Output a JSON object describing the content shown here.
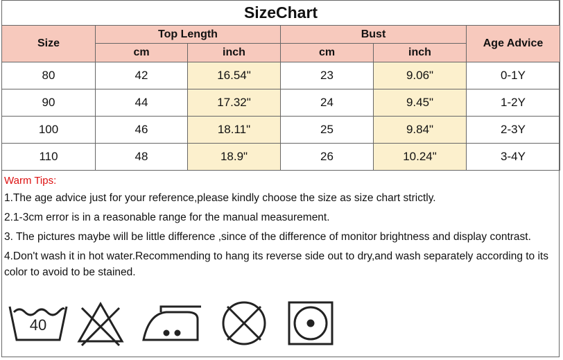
{
  "title": "SizeChart",
  "header": {
    "size": "Size",
    "top_length": "Top Length",
    "bust": "Bust",
    "age_advice": "Age Advice",
    "cm": "cm",
    "inch": "inch"
  },
  "table": {
    "rows": [
      [
        "80",
        "42",
        "16.54\"",
        "23",
        "9.06\"",
        "0-1Y"
      ],
      [
        "90",
        "44",
        "17.32\"",
        "24",
        "9.45\"",
        "1-2Y"
      ],
      [
        "100",
        "46",
        "18.11\"",
        "25",
        "9.84\"",
        "2-3Y"
      ],
      [
        "110",
        "48",
        "18.9\"",
        "26",
        "10.24\"",
        "3-4Y"
      ]
    ]
  },
  "tips": {
    "title": "Warm Tips:",
    "items": [
      "1.The age advice just for your reference,please kindly choose the size as size chart strictly.",
      "2.1-3cm error is in a reasonable range for the manual measurement.",
      "3. The pictures maybe will be little difference ,since of the difference of monitor brightness and display contrast.",
      "4.Don't wash it in hot water.Recommending to hang its reverse side out to dry,and wash separately according to its color to avoid to be stained."
    ]
  },
  "icons": {
    "wash_temp": "40"
  }
}
